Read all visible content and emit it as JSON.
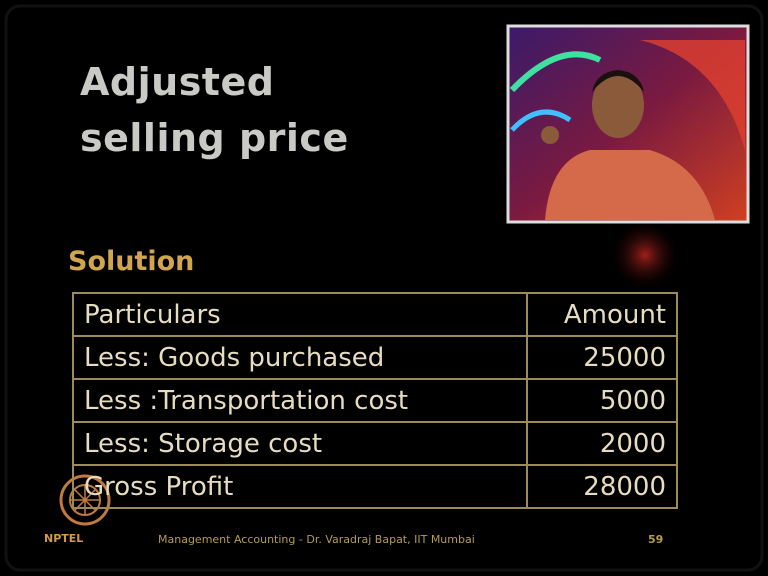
{
  "slide": {
    "title_lines": [
      "Adjusted",
      "selling price"
    ],
    "subheading": "Solution",
    "table": {
      "header": [
        "Particulars",
        "Amount"
      ],
      "rows": [
        [
          "Less: Goods purchased",
          25000
        ],
        [
          "Less :Transportation cost",
          5000
        ],
        [
          "Less: Storage cost",
          2000
        ],
        [
          "Gross Profit",
          28000
        ]
      ]
    },
    "footer": {
      "logo": "NPTEL",
      "course": "Management Accounting - Dr. Varadraj Bapat, IIT Mumbai",
      "page": 59
    }
  }
}
